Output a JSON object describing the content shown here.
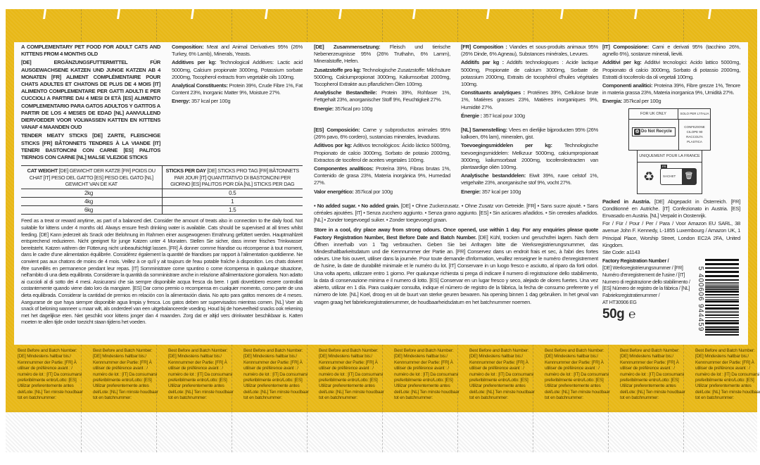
{
  "colors": {
    "yellow": "#e8b817",
    "panel": "#fbfbfb",
    "text": "#2a2a2a"
  },
  "header": {
    "product_title": "A COMPLEMENTARY PET FOOD FOR ADULT CATS AND KITTENS FROM 4 MONTHS OLD",
    "product_title_multi": "[DE] ERGÄNZUNGSFUTTERMITTEL FÜR AUSGEWACHSENE KATZEN UND JUNGE KATZEN AB 4 MONATEN [FR] ALIMENT COMPLÉMENTAIRE POUR CHATS ADULTES ET CHATONS DE PLUS DE 4 MOIS [IT] ALIMENTO COMPLEMENTARE PER GATTI ADULTI E PER CUCCIOLI A PARTIRE DAI 4 MESI DI ETÀ [ES] ALIMENTO COMPLEMENTARIO PARA GATOS ADULTOS Y GATITOS A PARTIR DE LOS 4 MESES DE EDAD [NL] AANVULLEND DIERVOEDER VOOR VOLWASSEN KATTEN EN KITTENS VANAF 4 MAANDEN OUD",
    "subtitle": "TENDER MEATY STICKS [DE] ZARTE, FLEISCHIGE STICKS [FR] BÂTONNETS TENDRES À LA VIANDE [IT] TENERI BASTONCINI CON CARNE [ES] PALITOS TIERNOS CON CARNE [NL] MALSE VLEZIGE STICKS"
  },
  "sections": [
    {
      "lang": "EN",
      "items": [
        {
          "label": "Composition:",
          "text": " Meat and Animal Derivatives 95% (26% Turkey, 6% Lamb), Minerals, Yeasts."
        },
        {
          "label": "Additives per kg:",
          "text": " Technological Additives: Lactic acid 5000mg, Calcium propionate 3000mg, Potassium sorbate 2000mg, Tocopherol extracts from vegetable oils 100mg."
        },
        {
          "label": "Analytical Constituents:",
          "text": " Protein 39%, Crude Fibre 1%, Fat Content 23%, Inorganic Matter 9%, Moisture 27%."
        },
        {
          "label": "Energy:",
          "text": " 357 kcal per 100g"
        }
      ]
    },
    {
      "lang": "DE",
      "items": [
        {
          "label": "[DE] Zusammensetzung:",
          "text": " Fleisch und tierische Nebenerzeugnisse 95% (26% Truthahn, 6% Lamm), Mineralstoffe, Hefen."
        },
        {
          "label": "Zusatzstoffe pro kg:",
          "text": " Technologische Zusatzstoffe: Milchsäure 5000mg, Calciumpropionat 3000mg, Kaliumsorbat 2000mg, Tocopherol Extrakte aus pflanzlichen Ölen 100mg."
        },
        {
          "label": "Analytische Bestandteile:",
          "text": " Protein 39%, Rohfaser 1%, Fettgehalt 23%, anorganischer Stoff 9%, Feuchtigkeit 27%."
        },
        {
          "label": "Energie:",
          "text": " 357kcal pro 100g"
        }
      ]
    },
    {
      "lang": "FR",
      "items": [
        {
          "label": "[FR] Composition :",
          "text": " Viandes et sous-produits animaux 95% (26% Dinde, 6% Agneau), Substances minérales, Levures."
        },
        {
          "label": "Additifs par kg :",
          "text": " Additifs technologiques : Acide lactique 5000mg, Propionate de calcium 3000mg, Sorbate de potassium 2000mg, Extraits de tocophérol d'huiles végétales 100mg."
        },
        {
          "label": "Constituants analytiques :",
          "text": " Protéines 39%, Cellulose brute 1%, Matières grasses 23%, Matières inorganiques 9%, Humidité 27%."
        },
        {
          "label": "Énergie :",
          "text": " 357 kcal pour 100g"
        }
      ]
    },
    {
      "lang": "ES",
      "items": [
        {
          "label": "[ES] Composición:",
          "text": " Carne y subproductos animales 95% (26% pavo, 6% cordero), sustancias minerales, levaduras."
        },
        {
          "label": "Aditivos por kg:",
          "text": " Aditivos tecnológicos: Ácido láctico 5000mg, Propionato de calcio 3000mg, Sorbato de potasio 2000mg, Extractos de tocoferol de aceites vegetales 100mg."
        },
        {
          "label": "Componentes analíticos:",
          "text": " Proteína 39%, Fibras brutas 1%, Contenido de grasa 23%, Materia inorgánica 9%, Humedad 27%."
        },
        {
          "label": "Valor energético:",
          "text": " 357kcal por 100g"
        }
      ]
    },
    {
      "lang": "NL",
      "items": [
        {
          "label": "[NL] Samenstelling:",
          "text": " Vlees en dierlijke bijproducten 95% (26% kalkoen, 6% lam), mineralen, gist."
        },
        {
          "label": "Toevoegingsmiddelen per kg:",
          "text": " Technologische toevoegingsmiddelen: Melkzuur 5000mg, calciumpropionaat 3000mg, kaliumsorbaat 2000mg, tocoferolextracten van plantaardige oliën 100mg."
        },
        {
          "label": "Analytische bestanddelen:",
          "text": " Eiwit 39%, ruwe celstof 1%, vetgehalte 23%, anorganische stof 9%, vocht 27%."
        },
        {
          "label": "Energie:",
          "text": " 357 kcal per 100g"
        }
      ]
    },
    {
      "lang": "IT",
      "items": [
        {
          "label": "[IT] Composizione:",
          "text": " Carni e derivati 95% (tacchino 26%, agnello 6%), sostanze minerali, lieviti."
        },
        {
          "label": "Additivi per kg:",
          "text": " Additivi tecnologici: Acido lattico 5000mg, Propionato di calcio 3000mg, Sorbato di potassio 2000mg, Estratti di tocoferolo da oli vegetali 100mg."
        },
        {
          "label": "Componenti analitici:",
          "text": " Proteina 39%, Fibre grezze 1%, Tenore in materia grassa 23%, Materia inorganica 9%, Umidità 27%."
        },
        {
          "label": "Energia:",
          "text": " 357kcal per 100g"
        }
      ]
    }
  ],
  "feeding_table": {
    "headers": [
      {
        "bold": "CAT WEIGHT",
        "rest": " [DE] GEWICHT DER KATZE [FR] POIDS DU CHAT [IT] PESO DEL GATTO [ES] PESO DEL GATO [NL] GEWICHT VAN DE KAT"
      },
      {
        "bold": "STICKS PER DAY",
        "rest": " [DE] STICKS PRO TAG [FR] BÂTONNETS PAR JOUR [IT] QUANTITATIVO DI BASTONCINI PER GIORNO [ES] PALITOS POR DÍA [NL] STICKS PER DAG"
      }
    ],
    "rows": [
      [
        "2kg",
        "0.5"
      ],
      [
        "4kg",
        "1"
      ],
      [
        "6kg",
        "1.5"
      ]
    ]
  },
  "feeding_text": "Feed as a treat or reward anytime, as part of a balanced diet. Consider the amount of treats also in connection to the daily food. Not suitable for kittens under 4 months old. Always ensure fresh drinking water is available. Cats should be supervised at all times whilst feeding. [DE] Kann jederzeit als Snack oder Belohnung im Rahmen einer ausgewogenen Ernährung gefüttert werden. Hauptmahlzeit entsprechend reduzieren. Nicht geeignet für junge Katzen unter 4 Monaten. Stellen Sie sicher, dass immer frisches Trinkwasser bereitsteht. Katzen währen der Fütterung nicht unbeaufsichtigt lassen. [FR] À donner comme friandise ou récompense à tout moment, dans le cadre d'une alimentation équilibrée. Considérez également la quantité de friandises par rapport à l'alimentation quotidienne. Ne convient pas aux chatons de moins de 4 mois. Veillez à ce qu'il y ait toujours de l'eau potable fraîche à disposition. Les chats doivent être surveillés en permanence pendant leur repas. [IT] Somministrare come spuntino o come ricompensa in qualunque situazione, nell'ambito di una dieta equilibrata. Considerare la quantità da somministrare anche in relazione all'alimentazione giornaliera. Non adatto ai cuccioli al di sotto dei 4 mesi. Assicurarsi che sia sempre disponibile acqua fresca da bere. I gatti dovrebbero essere controllati costantemente quando viene dato loro da mangiare. [ES] Dar como premio o recompensa en cualquier momento, como parte de una dieta equilibrada. Considerar la cantidad de premios en relación con la alimentación diaria. No apto para gatitos menores de 4 meses. Asegurarse de que haya siempre disponible agua limpia y fresca. Los gatos deben ser supervisados mientras comen. [NL] Voer als snack of beloning wanneer u maar wilt, als onderdeel van een uitgebalanceerde voeding. Houd bij de hoeveelheid snacks ook rekening met het dagelijkse eten. Niet geschikt voor kittens jonger dan 4 maanden. Zorg dat er altijd vers drinkwater beschikbaar is. Katten moeten te allen tijde onder toezicht staan tijdens het voeden.",
  "no_added": {
    "bold1": "• No added sugar.",
    "bold2": " • No added grain.",
    "rest": " [DE] • Ohne Zuckerzusatz. • Ohne Zusatz von Getreide. [FR] • Sans sucre ajouté. • Sans céréales ajoutées. [IT] • Senza zucchero aggiunto. • Senza grano aggiunto. [ES] • Sin azúcares añadidos. • Sin cereales añadidos. [NL] • Zonder toegevoegd suiker. • Zonder toegevoegd graan."
  },
  "storage": {
    "bold": "Store in a cool, dry place away from strong odours. Once opened, use within 1 day. For any enquiries please quote Factory Registration Number, Best Before Date and Batch Number.",
    "rest": " [DE] Kühl, trocken und geruchsfrei lagern. Nach dem Öffnen innerhalb von 1 Tag verbrauchen. Geben Sie bei Anfragen bitte die Werksregistrierungsnummer, das Mindesthaltbarkeitsdatum und die Kennnummer der Partie an. [FR] Conservez dans un endroit frais et sec, à l'abri des fortes odeurs. Une fois ouvert, utiliser dans la journée. Pour toute demande d'information, veuillez renseigner le numéro d'enregistrement de l'usine, la date de durabilité minimale et le numéro du lot. [IT] Conservare in un luogo fresco e asciutto, al riparo da forti odori. Una volta aperto, utilizzare entro 1 giorno. Per qualunque richiesta si prega di indicare il numero di registrazione dello stabilimento, la data di conservazione minima e il numero di lotto. [ES] Conservar en un lugar fresco y seco, alejado de olores fuertes. Una vez abierto, utilizar en 1 día. Para cualquier consulta, indique el número de registro de la fábrica, la fecha de consumo preferente y el número de lote. [NL] Koel, droog en uit de buurt van sterke geuren bewaren. Na opening binnen 1 dag gebruiken. In het geval van vragen graag het fabrieksregistratienummer, de houdbaarheidsdatum en het batchnummer noemen."
  },
  "recycling": {
    "uk_header": "FOR UK ONLY",
    "uk_label": "Do Not Recycle",
    "it_header": "SOLO PER L'ITALIA",
    "it_text": "CONFEZIONE CILOPE 90 RACCOLTA PLASTICA",
    "fr_header": "UNIQUEMENT POUR LA FRANCE",
    "fr_badge": "FR",
    "fr_sachet": "SACHET",
    "icons": [
      "recycle-arrow-icon",
      "triman-icon",
      "bin-icon"
    ]
  },
  "packed": {
    "bold": "Packed in Austria.",
    "rest": " [DE] Abgepackt in Österreich. [FR] Conditionné en Autriche. [IT] Confezionato in Austria. [ES] Envasado en Austria. [NL] Verpakt in Oostenrijk."
  },
  "address": "For / Für / Pour / Per / Para / Voor Amazon EU SARL, 38 avenue John F. Kennedy, L-1855 Luxembourg / Amazon UK, 1 Principal Place, Worship Street, London EC2A 2FA, United Kingdom.",
  "site_code": "Site Code: a1143",
  "factory": {
    "bold": "Factory Registration Number /",
    "rest": "[DE] Werksregistrierungsnummer / [FR] Numéro d'enregistrement de l'usine / [IT] Numero di registrazione dello stabilimento / [ES] Número de registro de la fábrica / [NL] Fabrieksregistratienummer /",
    "code": "AT HT30906 EG"
  },
  "net_weight": "50g",
  "estimated_mark": "℮",
  "barcode": "5 400606 944459",
  "batch_text": "Best Before and Batch Number: [DE] Mindestens haltbar bis:/ Kennnummer der Partie: [FR] À utiliser de préférence avant : / numéro de lot : [IT] Da consumarsi preferibilmente entro/Lotto: [ES] Utilizar preferentemente antes del/Lote: [NL] Ten minste houdbaar tot en batchnummer:"
}
